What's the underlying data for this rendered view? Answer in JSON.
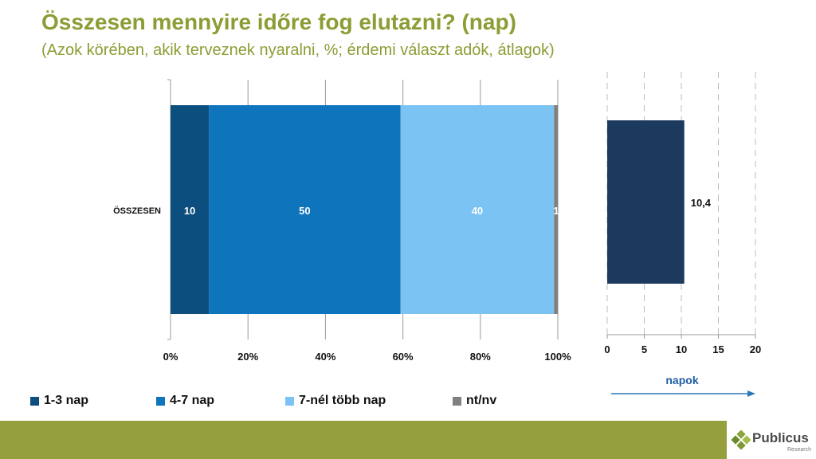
{
  "header": {
    "title": "Összesen mennyire időre fog elutazni? (nap)",
    "subtitle": "(Azok körében, akik terveznek nyaralni, %; érdemi választ adók, átlagok)"
  },
  "colors": {
    "title": "#8a9e35",
    "subtitle": "#8a9e35",
    "footer": "#95a03d",
    "avg_bar": "#1c3a5e",
    "arrow": "#2b79b8",
    "axis_label_napok": "#1e5fa3"
  },
  "chart_data": [
    {
      "type": "bar",
      "orientation": "horizontal",
      "stacked": true,
      "categories": [
        "ÖSSZESEN"
      ],
      "series": [
        {
          "name": "1-3 nap",
          "color": "#0c4e7e",
          "values": [
            10
          ]
        },
        {
          "name": "4-7 nap",
          "color": "#0e74bb",
          "values": [
            50
          ]
        },
        {
          "name": "7-nél több nap",
          "color": "#7bc3f3",
          "values": [
            40
          ]
        },
        {
          "name": "nt/nv",
          "color": "#808080",
          "values": [
            1
          ]
        }
      ],
      "data_labels": [
        "10",
        "50",
        "40",
        "1"
      ],
      "xlim": [
        0,
        100
      ],
      "xticks": [
        "0%",
        "20%",
        "40%",
        "60%",
        "80%",
        "100%"
      ],
      "grid": true,
      "legend": "bottom"
    },
    {
      "type": "bar",
      "orientation": "horizontal",
      "categories": [
        "ÖSSZESEN"
      ],
      "values": [
        10.4
      ],
      "data_label": "10,4",
      "xlim": [
        0,
        20
      ],
      "xticks": [
        "0",
        "5",
        "10",
        "15",
        "20"
      ],
      "xlabel": "napok",
      "grid": "dashed"
    }
  ],
  "logo": {
    "name": "Publicus",
    "sub": "Research"
  }
}
